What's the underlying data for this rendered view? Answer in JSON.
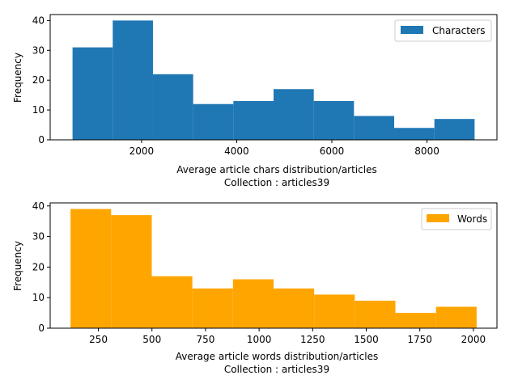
{
  "chart_data": [
    {
      "type": "bar",
      "subtype": "histogram",
      "bin_edges": [
        550,
        1395,
        2240,
        3085,
        3930,
        4775,
        5620,
        6465,
        7310,
        8155,
        9000
      ],
      "series": [
        {
          "name": "Characters",
          "values": [
            31,
            40,
            22,
            12,
            13,
            17,
            13,
            8,
            4,
            7
          ],
          "color": "#1f77b4"
        }
      ],
      "xlabel": "Average article chars distribution/articles",
      "xlabel2": "Collection : articles39",
      "ylabel": "Frequency",
      "xlim": [
        80,
        9470
      ],
      "ylim": [
        0,
        42
      ],
      "xticks": [
        2000,
        4000,
        6000,
        8000
      ],
      "yticks": [
        0,
        10,
        20,
        30,
        40
      ],
      "legend_position": "top-right"
    },
    {
      "type": "bar",
      "subtype": "histogram",
      "bin_edges": [
        120,
        309.5,
        499,
        688.5,
        878,
        1067.5,
        1257,
        1446.5,
        1636,
        1825.5,
        2015
      ],
      "series": [
        {
          "name": "Words",
          "values": [
            39,
            37,
            17,
            13,
            16,
            13,
            11,
            9,
            5,
            7
          ],
          "color": "#ffa500"
        }
      ],
      "xlabel": "Average article words distribution/articles",
      "xlabel2": "Collection : articles39",
      "ylabel": "Frequency",
      "xlim": [
        25,
        2110
      ],
      "ylim": [
        0,
        41
      ],
      "xticks": [
        250,
        500,
        750,
        1000,
        1250,
        1500,
        1750,
        2000
      ],
      "yticks": [
        0,
        10,
        20,
        30,
        40
      ],
      "legend_position": "top-right"
    }
  ]
}
